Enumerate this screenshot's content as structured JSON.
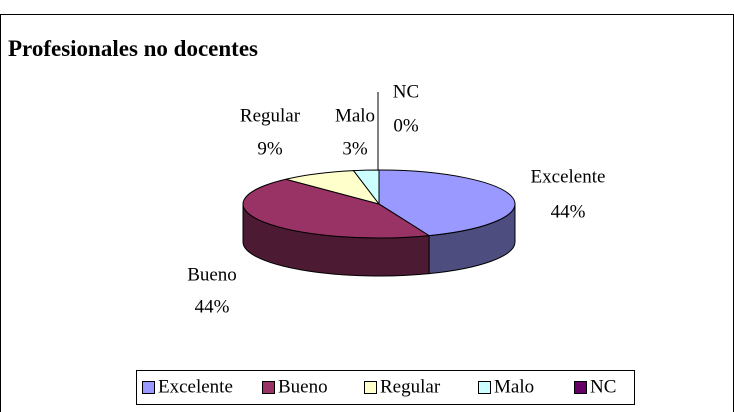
{
  "chart_data": {
    "type": "pie3d",
    "title": "Profesionales no docentes",
    "categories": [
      "Excelente",
      "Bueno",
      "Regular",
      "Malo",
      "NC"
    ],
    "values": [
      44,
      44,
      9,
      3,
      0
    ],
    "value_labels": [
      "44%",
      "44%",
      "9%",
      "3%",
      "0%"
    ],
    "colors": [
      "#9999ff",
      "#993366",
      "#ffffcc",
      "#ccffff",
      "#660066"
    ],
    "legend": "bottom"
  }
}
